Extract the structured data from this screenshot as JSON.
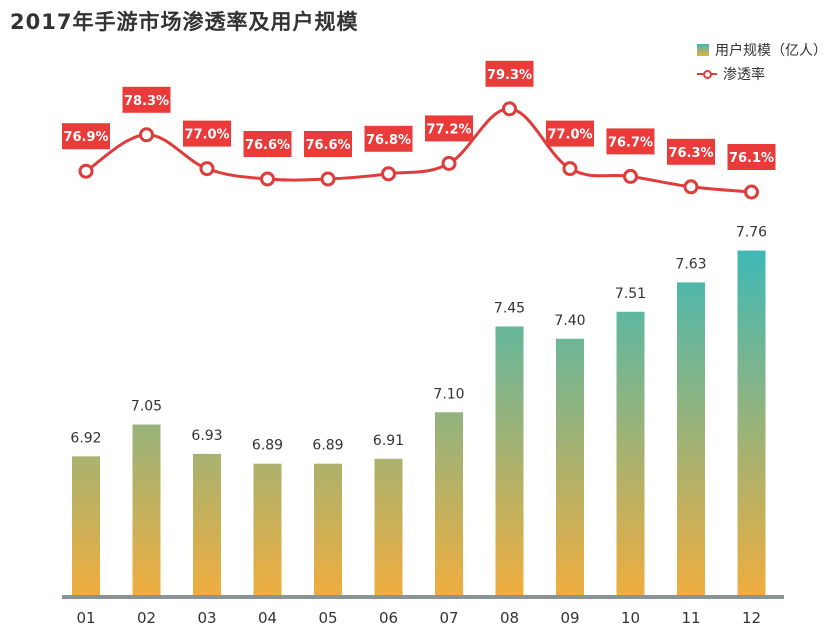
{
  "chart_data": {
    "type": "bar",
    "title": "2017年手游市场渗透率及用户规模",
    "categories": [
      "01",
      "02",
      "03",
      "04",
      "05",
      "06",
      "07",
      "08",
      "09",
      "10",
      "11",
      "12"
    ],
    "series": [
      {
        "name": "用户规模（亿人）",
        "type": "bar",
        "values": [
          6.92,
          7.05,
          6.93,
          6.89,
          6.89,
          6.91,
          7.1,
          7.45,
          7.4,
          7.51,
          7.63,
          7.76
        ],
        "labels": [
          "6.92",
          "7.05",
          "6.93",
          "6.89",
          "6.89",
          "6.91",
          "7.10",
          "7.45",
          "7.40",
          "7.51",
          "7.63",
          "7.76"
        ]
      },
      {
        "name": "渗透率",
        "type": "line",
        "values": [
          76.9,
          78.3,
          77.0,
          76.6,
          76.6,
          76.8,
          77.2,
          79.3,
          77.0,
          76.7,
          76.3,
          76.1
        ],
        "labels": [
          "76.9%",
          "78.3%",
          "77.0%",
          "76.6%",
          "76.6%",
          "76.8%",
          "77.2%",
          "79.3%",
          "77.0%",
          "76.7%",
          "76.3%",
          "76.1%"
        ]
      }
    ],
    "legend": "top-right",
    "grid": false,
    "colors": {
      "bar_top": "#3fb9b6",
      "bar_bottom": "#efad3f",
      "line": "#e03c3c",
      "label_bg": "#ea3b3b",
      "axis": "#8a9497"
    }
  }
}
